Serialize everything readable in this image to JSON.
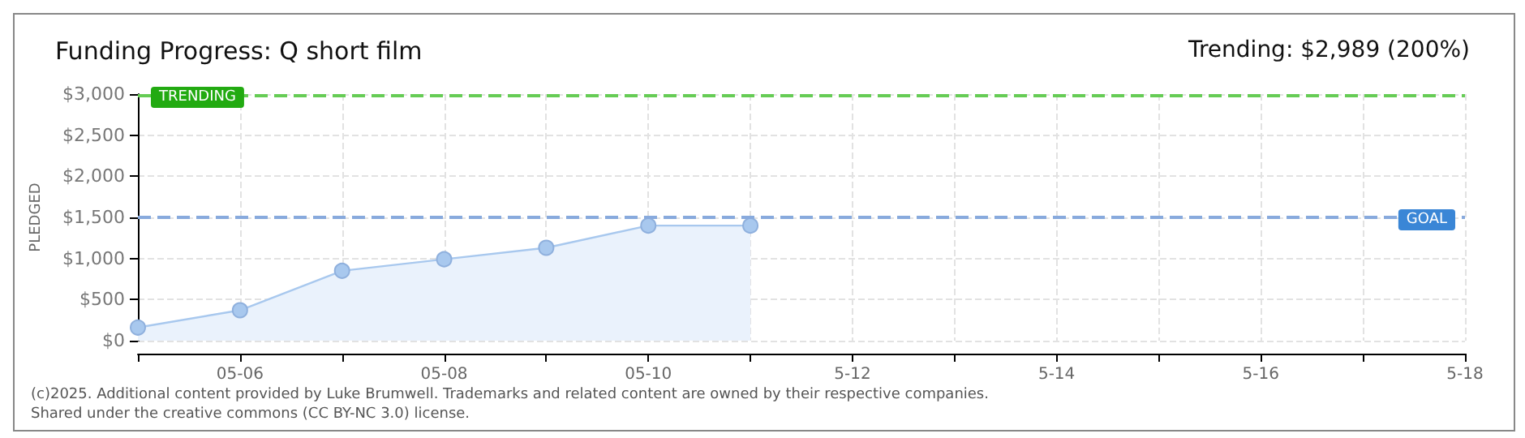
{
  "chart_data": {
    "type": "area",
    "title": "Funding Progress: Q short film",
    "subtitle": "Trending: $2,989 (200%)",
    "ylabel": "PLEDGED",
    "categories": [
      null,
      "05-06",
      null,
      "05-08",
      null,
      "05-10",
      null,
      "5-12",
      null,
      "5-14",
      null,
      "5-16",
      null,
      "5-18"
    ],
    "series": [
      {
        "color": "#a8c8ee",
        "values": [
          160,
          370,
          850,
          990,
          1130,
          1400,
          1400,
          null,
          null,
          null,
          null,
          null,
          null,
          null
        ]
      }
    ],
    "ylim": [
      0,
      3000
    ],
    "yticks": [
      {
        "value": 0,
        "label": "$0"
      },
      {
        "value": 500,
        "label": "$500"
      },
      {
        "value": 1000,
        "label": "$1,000"
      },
      {
        "value": 1500,
        "label": "$1,500"
      },
      {
        "value": 2000,
        "label": "$2,000"
      },
      {
        "value": 2500,
        "label": "$2,500"
      },
      {
        "value": 3000,
        "label": "$3,000"
      }
    ],
    "ref_lines": [
      {
        "axis": "y",
        "value": 2989,
        "label": "TRENDING",
        "color": "#66cc55",
        "line_style": "dashed"
      },
      {
        "axis": "y",
        "value": 1500,
        "label": "GOAL",
        "color": "#88aadd",
        "line_style": "dashed"
      }
    ],
    "annotations": [
      "(c)2025. Additional content provided by Luke Brumwell. Trademarks and related content are owned by their respective companies.",
      "Shared under the creative commons (CC BY-NC 3.0) license."
    ],
    "grid": true,
    "marker": "circle"
  }
}
